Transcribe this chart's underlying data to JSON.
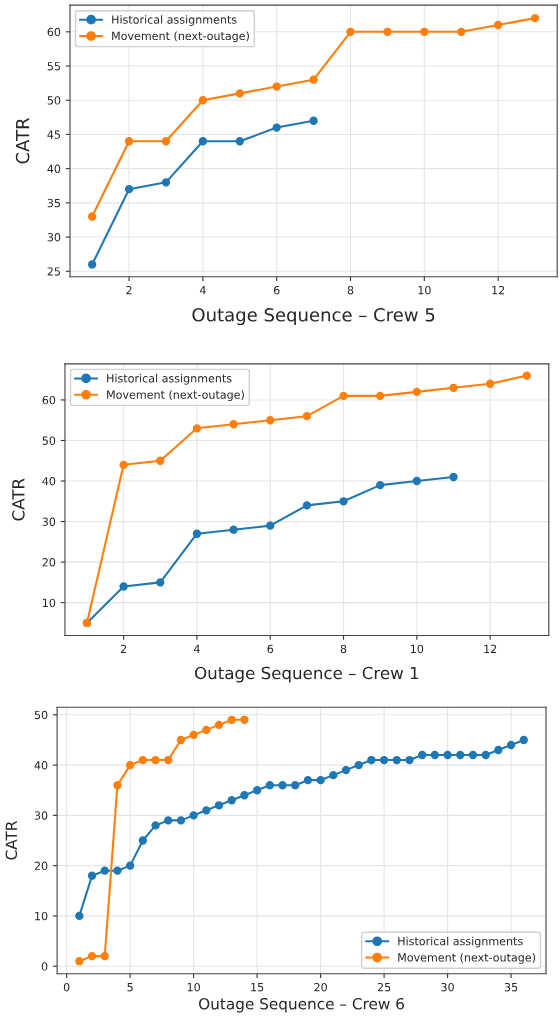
{
  "chart_data": [
    {
      "type": "line",
      "xlabel": "Outage Sequence – Crew 5",
      "ylabel": "CATR",
      "xlim": [
        0.4,
        13.6
      ],
      "xticks": [
        2,
        4,
        6,
        8,
        10,
        12
      ],
      "ylim": [
        24.2,
        63.9
      ],
      "yticks": [
        25,
        30,
        35,
        40,
        45,
        50,
        55,
        60
      ],
      "grid": true,
      "legend": "top left",
      "marker": "circle",
      "line_style": "solid",
      "series": [
        {
          "name": "Historical assignments",
          "color": "#1f77b4",
          "x": [
            1,
            2,
            3,
            4,
            5,
            6,
            7
          ],
          "values": [
            26,
            37,
            38,
            44,
            44,
            46,
            47
          ]
        },
        {
          "name": "Movement (next-outage)",
          "color": "#ff7f0e",
          "x": [
            1,
            2,
            3,
            4,
            5,
            6,
            7,
            8,
            9,
            10,
            11,
            12,
            13
          ],
          "values": [
            33,
            44,
            44,
            50,
            51,
            52,
            53,
            60,
            60,
            60,
            60,
            61,
            62
          ]
        }
      ]
    },
    {
      "type": "line",
      "xlabel": "Outage Sequence – Crew 1",
      "ylabel": "CATR",
      "xlim": [
        0.4,
        13.6
      ],
      "xticks": [
        2,
        4,
        6,
        8,
        10,
        12
      ],
      "ylim": [
        1.9,
        68.9
      ],
      "yticks": [
        10,
        20,
        30,
        40,
        50,
        60
      ],
      "grid": true,
      "legend": "top left",
      "marker": "circle",
      "line_style": "solid",
      "series": [
        {
          "name": "Historical assignments",
          "color": "#1f77b4",
          "x": [
            1,
            2,
            3,
            4,
            5,
            6,
            7,
            8,
            9,
            10,
            11
          ],
          "values": [
            5,
            14,
            15,
            27,
            28,
            29,
            34,
            35,
            39,
            40,
            41
          ]
        },
        {
          "name": "Movement (next-outage)",
          "color": "#ff7f0e",
          "x": [
            1,
            2,
            3,
            4,
            5,
            6,
            7,
            8,
            9,
            10,
            11,
            12,
            13
          ],
          "values": [
            5,
            44,
            45,
            53,
            54,
            55,
            56,
            61,
            61,
            62,
            63,
            64,
            66
          ]
        }
      ]
    },
    {
      "type": "line",
      "xlabel": "Outage Sequence – Crew 6",
      "ylabel": "CATR",
      "xlim": [
        -0.75,
        37.75
      ],
      "xticks": [
        0,
        5,
        10,
        15,
        20,
        25,
        30,
        35
      ],
      "ylim": [
        -1.5,
        51.5
      ],
      "yticks": [
        0,
        10,
        20,
        30,
        40,
        50
      ],
      "grid": true,
      "legend": "bottom right",
      "marker": "circle",
      "line_style": "solid",
      "series": [
        {
          "name": "Historical assignments",
          "color": "#1f77b4",
          "x": [
            1,
            2,
            3,
            4,
            5,
            6,
            7,
            8,
            9,
            10,
            11,
            12,
            13,
            14,
            15,
            16,
            17,
            18,
            19,
            20,
            21,
            22,
            23,
            24,
            25,
            26,
            27,
            28,
            29,
            30,
            31,
            32,
            33,
            34,
            35,
            36
          ],
          "values": [
            10,
            18,
            19,
            19,
            20,
            25,
            28,
            29,
            29,
            30,
            31,
            32,
            33,
            34,
            35,
            36,
            36,
            36,
            37,
            37,
            38,
            39,
            40,
            41,
            41,
            41,
            41,
            42,
            42,
            42,
            42,
            42,
            42,
            43,
            44,
            45
          ]
        },
        {
          "name": "Movement (next-outage)",
          "color": "#ff7f0e",
          "x": [
            1,
            2,
            3,
            4,
            5,
            6,
            7,
            8,
            9,
            10,
            11,
            12,
            13,
            14
          ],
          "values": [
            1,
            2,
            2,
            36,
            40,
            41,
            41,
            41,
            45,
            46,
            47,
            48,
            49,
            49
          ]
        }
      ]
    }
  ]
}
